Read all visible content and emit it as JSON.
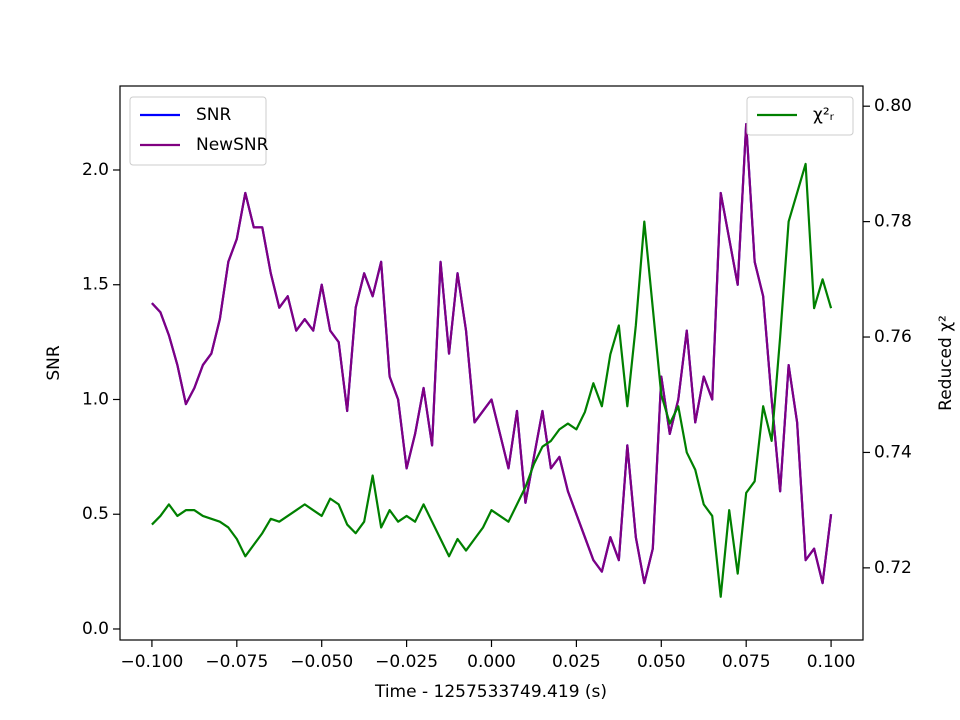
{
  "chart_data": {
    "type": "line",
    "xlabel": "Time - 1257533749.419 (s)",
    "ylabel": "SNR",
    "y2label": "Reduced χ²",
    "x": [
      -0.1,
      -0.0975,
      -0.095,
      -0.0925,
      -0.09,
      -0.0875,
      -0.085,
      -0.0825,
      -0.08,
      -0.0775,
      -0.075,
      -0.0725,
      -0.07,
      -0.0675,
      -0.065,
      -0.0625,
      -0.06,
      -0.0575,
      -0.055,
      -0.0525,
      -0.05,
      -0.0475,
      -0.045,
      -0.0425,
      -0.04,
      -0.0375,
      -0.035,
      -0.0325,
      -0.03,
      -0.0275,
      -0.025,
      -0.0225,
      -0.02,
      -0.0175,
      -0.015,
      -0.0125,
      -0.01,
      -0.0075,
      -0.005,
      -0.0025,
      0,
      0.0025,
      0.005,
      0.0075,
      0.01,
      0.0125,
      0.015,
      0.0175,
      0.02,
      0.0225,
      0.025,
      0.0275,
      0.03,
      0.0325,
      0.035,
      0.0375,
      0.04,
      0.0425,
      0.045,
      0.0475,
      0.05,
      0.0525,
      0.055,
      0.0575,
      0.06,
      0.0625,
      0.065,
      0.0675,
      0.07,
      0.0725,
      0.075,
      0.0775,
      0.08,
      0.0825,
      0.085,
      0.0875,
      0.09,
      0.0925,
      0.095,
      0.0975,
      0.1
    ],
    "series": [
      {
        "name": "SNR",
        "color": "#0000ff",
        "axis": "y",
        "values": [
          1.42,
          1.38,
          1.28,
          1.15,
          0.98,
          1.05,
          1.15,
          1.2,
          1.35,
          1.6,
          1.7,
          1.9,
          1.75,
          1.75,
          1.55,
          1.4,
          1.45,
          1.3,
          1.35,
          1.3,
          1.5,
          1.3,
          1.25,
          0.95,
          1.4,
          1.55,
          1.45,
          1.6,
          1.1,
          1.0,
          0.7,
          0.85,
          1.05,
          0.8,
          1.6,
          1.2,
          1.55,
          1.3,
          0.9,
          0.95,
          1.0,
          0.85,
          0.7,
          0.95,
          0.55,
          0.75,
          0.95,
          0.7,
          0.75,
          0.6,
          0.5,
          0.4,
          0.3,
          0.25,
          0.4,
          0.3,
          0.8,
          0.4,
          0.2,
          0.35,
          1.1,
          0.85,
          1.0,
          1.3,
          0.9,
          1.1,
          1.0,
          1.9,
          1.7,
          1.5,
          2.2,
          1.6,
          1.45,
          1.0,
          0.6,
          1.15,
          0.9,
          0.3,
          0.35,
          0.2,
          0.5
        ]
      },
      {
        "name": "NewSNR",
        "color": "#800080",
        "axis": "y",
        "values": [
          1.42,
          1.38,
          1.28,
          1.15,
          0.98,
          1.05,
          1.15,
          1.2,
          1.35,
          1.6,
          1.7,
          1.9,
          1.75,
          1.75,
          1.55,
          1.4,
          1.45,
          1.3,
          1.35,
          1.3,
          1.5,
          1.3,
          1.25,
          0.95,
          1.4,
          1.55,
          1.45,
          1.6,
          1.1,
          1.0,
          0.7,
          0.85,
          1.05,
          0.8,
          1.6,
          1.2,
          1.55,
          1.3,
          0.9,
          0.95,
          1.0,
          0.85,
          0.7,
          0.95,
          0.55,
          0.75,
          0.95,
          0.7,
          0.75,
          0.6,
          0.5,
          0.4,
          0.3,
          0.25,
          0.4,
          0.3,
          0.8,
          0.4,
          0.2,
          0.35,
          1.1,
          0.85,
          1.0,
          1.3,
          0.9,
          1.1,
          1.0,
          1.9,
          1.7,
          1.5,
          2.2,
          1.6,
          1.45,
          1.0,
          0.6,
          1.15,
          0.9,
          0.3,
          0.35,
          0.2,
          0.5
        ]
      },
      {
        "name": "χ²ᵣ",
        "color": "#008000",
        "axis": "y2",
        "values": [
          0.7275,
          0.729,
          0.731,
          0.729,
          0.73,
          0.73,
          0.729,
          0.7285,
          0.728,
          0.727,
          0.725,
          0.722,
          0.724,
          0.726,
          0.7285,
          0.728,
          0.729,
          0.73,
          0.731,
          0.73,
          0.729,
          0.732,
          0.731,
          0.7275,
          0.726,
          0.728,
          0.736,
          0.727,
          0.73,
          0.728,
          0.729,
          0.728,
          0.731,
          0.728,
          0.725,
          0.722,
          0.725,
          0.723,
          0.725,
          0.727,
          0.73,
          0.729,
          0.728,
          0.731,
          0.734,
          0.738,
          0.741,
          0.742,
          0.744,
          0.745,
          0.744,
          0.747,
          0.752,
          0.748,
          0.757,
          0.762,
          0.748,
          0.762,
          0.78,
          0.765,
          0.75,
          0.745,
          0.748,
          0.74,
          0.737,
          0.731,
          0.729,
          0.715,
          0.73,
          0.719,
          0.733,
          0.735,
          0.748,
          0.742,
          0.76,
          0.78,
          0.785,
          0.79,
          0.765,
          0.77,
          0.765
        ]
      }
    ],
    "xlim": [
      -0.1094,
      0.1094
    ],
    "xticks": [
      {
        "value": -0.1,
        "label": "−0.100"
      },
      {
        "value": -0.075,
        "label": "−0.075"
      },
      {
        "value": -0.05,
        "label": "−0.050"
      },
      {
        "value": -0.025,
        "label": "−0.025"
      },
      {
        "value": 0,
        "label": "0.000"
      },
      {
        "value": 0.025,
        "label": "0.025"
      },
      {
        "value": 0.05,
        "label": "0.050"
      },
      {
        "value": 0.075,
        "label": "0.075"
      },
      {
        "value": 0.1,
        "label": "0.100"
      }
    ],
    "ylim": [
      -0.048,
      2.366
    ],
    "yticks": [
      {
        "value": 0,
        "label": "0.0"
      },
      0.5,
      {
        "value": 1,
        "label": "1.0"
      },
      1.5,
      {
        "value": 2,
        "label": "2.0"
      }
    ],
    "y2lim": [
      0.7075,
      0.8035
    ],
    "y2ticks": [
      0.72,
      0.74,
      0.76,
      0.78,
      {
        "value": 0.8,
        "label": "0.80"
      }
    ],
    "legend": "upper left",
    "legend2": "upper right",
    "grid": false
  }
}
